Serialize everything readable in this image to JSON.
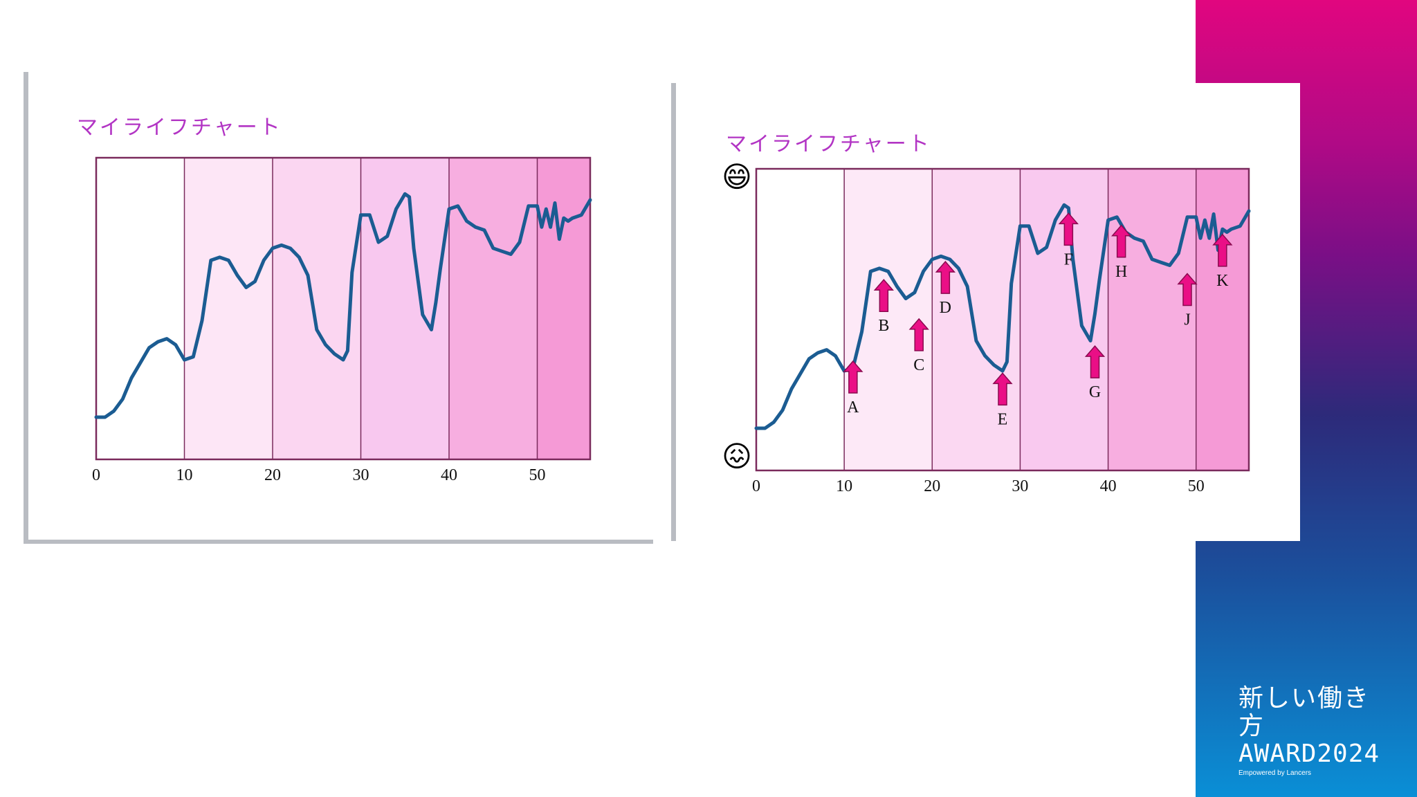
{
  "award": {
    "line1": "新しい働き方",
    "line2": "AWARD2024",
    "line3": "Empowered by Lancers"
  },
  "chart_data": [
    {
      "type": "line",
      "title": "マイライフチャート",
      "xlim": [
        0,
        56
      ],
      "x_ticks": [
        0,
        10,
        20,
        30,
        40,
        50
      ],
      "band_edges": [
        0,
        10,
        20,
        30,
        40,
        50,
        56
      ],
      "band_colors": [
        "#ffffff",
        "#fde6f6",
        "#fbd6f1",
        "#f8c8ef",
        "#f7aee0",
        "#f59ad6"
      ],
      "frame_color": "#7a2a5c",
      "line_color": "#1b5c92",
      "series": [
        {
          "x": [
            0,
            1,
            2,
            3,
            4,
            5,
            6,
            7,
            8,
            9,
            10,
            11,
            12,
            13,
            14,
            15,
            16,
            17,
            18,
            19,
            20,
            21,
            22,
            23,
            24,
            25,
            26,
            27,
            28,
            28.5,
            29,
            30,
            31,
            32,
            33,
            34,
            35,
            35.5,
            36,
            37,
            38,
            38.5,
            39,
            40,
            41,
            42,
            43,
            44,
            45,
            46,
            47,
            48,
            49,
            50,
            50.5,
            51,
            51.5,
            52,
            52.5,
            53,
            53.5,
            54,
            55,
            56
          ],
          "y": [
            14,
            14,
            16,
            20,
            27,
            32,
            37,
            39,
            40,
            38,
            33,
            34,
            46,
            66,
            67,
            66,
            61,
            57,
            59,
            66,
            70,
            71,
            70,
            67,
            61,
            43,
            38,
            35,
            33,
            36,
            62,
            81,
            81,
            72,
            74,
            83,
            88,
            87,
            70,
            48,
            43,
            52,
            63,
            83,
            84,
            79,
            77,
            76,
            70,
            69,
            68,
            72,
            84,
            84,
            77,
            83,
            77,
            85,
            73,
            80,
            79,
            80,
            81,
            86
          ]
        }
      ]
    },
    {
      "type": "line",
      "title": "マイライフチャート",
      "xlim": [
        0,
        56
      ],
      "x_ticks": [
        0,
        10,
        20,
        30,
        40,
        50
      ],
      "band_edges": [
        0,
        10,
        20,
        30,
        40,
        50,
        56
      ],
      "band_colors": [
        "#ffffff",
        "#fde9f7",
        "#fbd8f2",
        "#f9c9ef",
        "#f7aee0",
        "#f59ad6"
      ],
      "frame_color": "#7a2a5c",
      "line_color": "#1b5c92",
      "emoji_top": "😄",
      "emoji_bottom": "😖",
      "annotations": [
        {
          "label": "A",
          "x": 11,
          "y": 39
        },
        {
          "label": "B",
          "x": 14.5,
          "y": 66
        },
        {
          "label": "C",
          "x": 18.5,
          "y": 53
        },
        {
          "label": "D",
          "x": 21.5,
          "y": 72
        },
        {
          "label": "E",
          "x": 28,
          "y": 35
        },
        {
          "label": "F",
          "x": 35.5,
          "y": 88
        },
        {
          "label": "G",
          "x": 38.5,
          "y": 44
        },
        {
          "label": "H",
          "x": 41.5,
          "y": 84
        },
        {
          "label": "J",
          "x": 49,
          "y": 68
        },
        {
          "label": "K",
          "x": 53,
          "y": 81
        }
      ],
      "series": [
        {
          "x": [
            0,
            1,
            2,
            3,
            4,
            5,
            6,
            7,
            8,
            9,
            10,
            11,
            12,
            13,
            14,
            15,
            16,
            17,
            18,
            19,
            20,
            21,
            22,
            23,
            24,
            25,
            26,
            27,
            28,
            28.5,
            29,
            30,
            31,
            32,
            33,
            34,
            35,
            35.5,
            36,
            37,
            38,
            38.5,
            39,
            40,
            41,
            42,
            43,
            44,
            45,
            46,
            47,
            48,
            49,
            50,
            50.5,
            51,
            51.5,
            52,
            52.5,
            53,
            53.5,
            54,
            55,
            56
          ],
          "y": [
            14,
            14,
            16,
            20,
            27,
            32,
            37,
            39,
            40,
            38,
            33,
            34,
            46,
            66,
            67,
            66,
            61,
            57,
            59,
            66,
            70,
            71,
            70,
            67,
            61,
            43,
            38,
            35,
            33,
            36,
            62,
            81,
            81,
            72,
            74,
            83,
            88,
            87,
            70,
            48,
            43,
            52,
            63,
            83,
            84,
            79,
            77,
            76,
            70,
            69,
            68,
            72,
            84,
            84,
            77,
            83,
            77,
            85,
            73,
            80,
            79,
            80,
            81,
            86
          ]
        }
      ]
    }
  ]
}
